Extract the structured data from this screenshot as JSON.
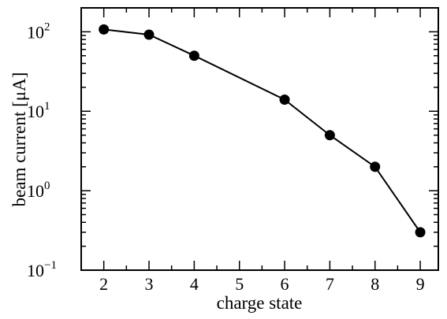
{
  "chart_data": {
    "type": "line",
    "xlabel": "charge state",
    "ylabel": "beam current [μA]",
    "yscale": "log",
    "xlim": [
      1.5,
      9.4
    ],
    "ylim": [
      0.1,
      200
    ],
    "x_ticks": [
      2,
      3,
      4,
      5,
      6,
      7,
      8,
      9
    ],
    "x_tick_labels": [
      "2",
      "3",
      "4",
      "5",
      "6",
      "7",
      "8",
      "9"
    ],
    "y_major_ticks": [
      {
        "value": 0.1,
        "base": "10",
        "exp": "−1"
      },
      {
        "value": 1,
        "base": "10",
        "exp": "0"
      },
      {
        "value": 10,
        "base": "10",
        "exp": "1"
      },
      {
        "value": 100,
        "base": "10",
        "exp": "2"
      }
    ],
    "grid": false,
    "series": [
      {
        "x": [
          2,
          3,
          4,
          6,
          7,
          8,
          9
        ],
        "values": [
          107,
          92,
          50,
          14,
          5,
          2,
          0.3
        ],
        "marker": "filled-circle",
        "color": "#000000"
      }
    ]
  }
}
